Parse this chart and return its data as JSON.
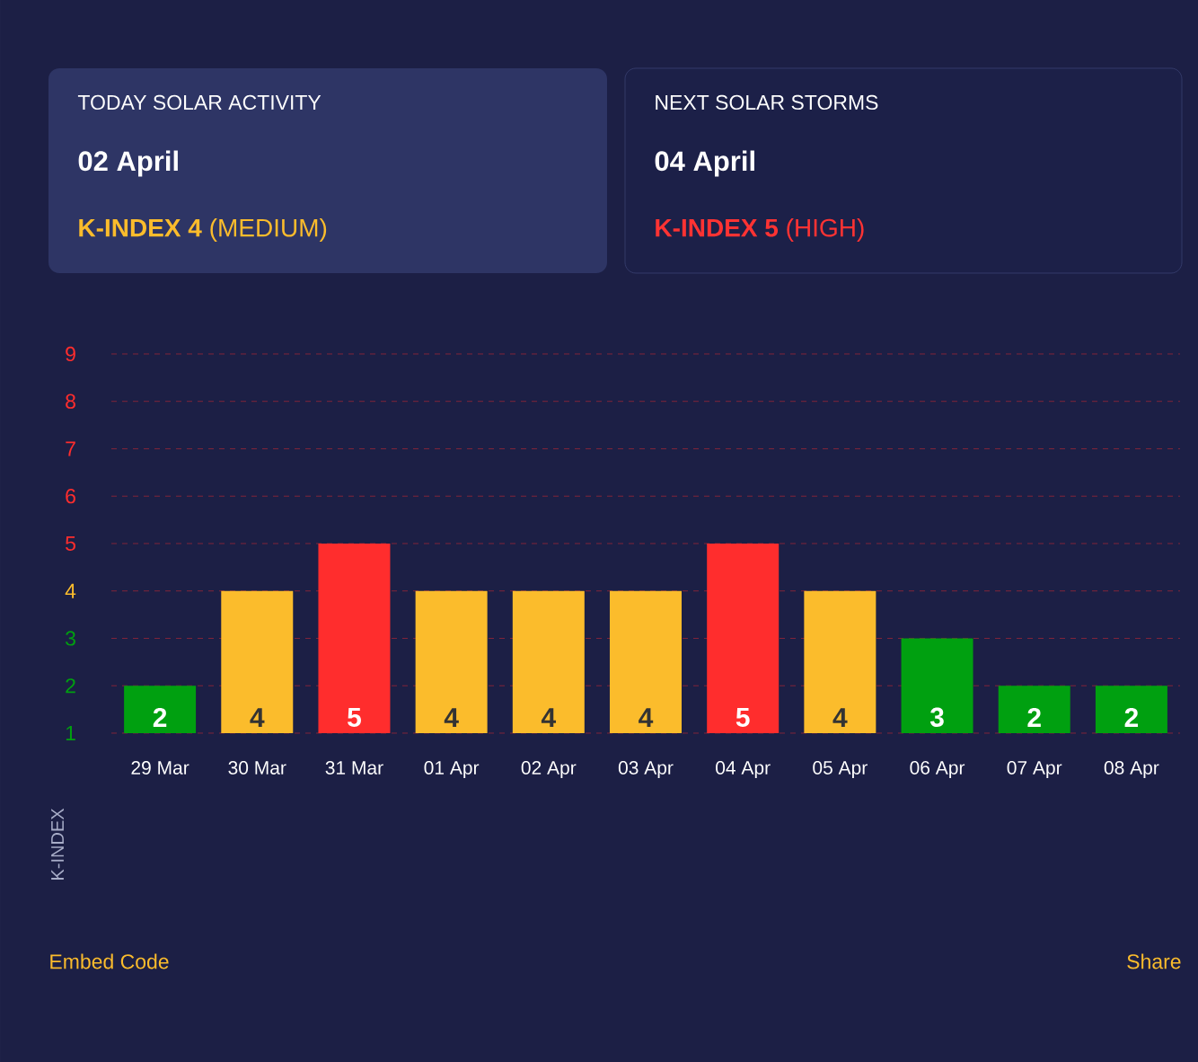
{
  "chart_data": {
    "type": "bar",
    "categories": [
      "29 Mar",
      "30 Mar",
      "31 Mar",
      "01 Apr",
      "02 Apr",
      "03 Apr",
      "04 Apr",
      "05 Apr",
      "06 Apr",
      "07 Apr",
      "08 Apr"
    ],
    "values": [
      2,
      4,
      5,
      4,
      4,
      4,
      5,
      4,
      3,
      2,
      2
    ],
    "colors": [
      "#00a010",
      "#fbbc2c",
      "#ff2d2d",
      "#fbbc2c",
      "#fbbc2c",
      "#fbbc2c",
      "#ff2d2d",
      "#fbbc2c",
      "#00a010",
      "#00a010",
      "#00a010"
    ],
    "ylim": [
      1,
      9
    ],
    "yticks": [
      1,
      2,
      3,
      4,
      5,
      6,
      7,
      8,
      9
    ],
    "grid": "y",
    "data_labels": true,
    "annotations": [
      "TODAY SOLAR ACTIVITY",
      "02 April",
      "**K-INDEX 4** (MEDIUM)",
      "NEXT SOLAR STORMS",
      "04 April",
      "**K-INDEX 5** (HIGH)",
      "Embed Code",
      "Share",
      "K-INDEX"
    ]
  }
}
